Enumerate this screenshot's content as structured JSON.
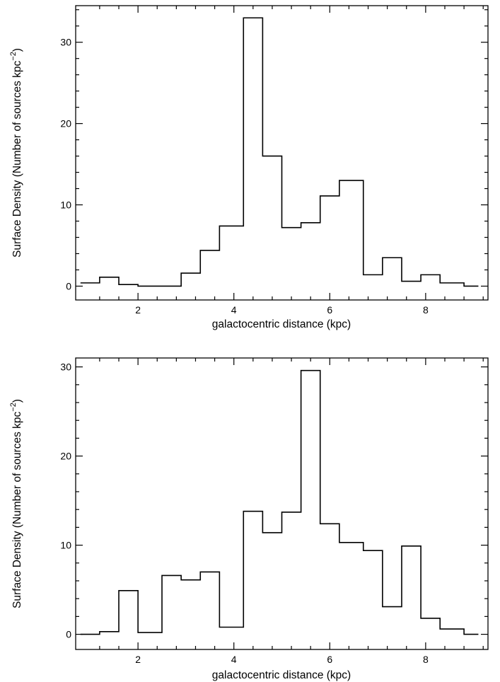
{
  "chart_data": [
    {
      "type": "bar",
      "style": "step-histogram",
      "bin_edges": [
        0.8,
        1.2,
        1.6,
        2.0,
        2.5,
        2.9,
        3.3,
        3.7,
        4.2,
        4.6,
        5.0,
        5.4,
        5.8,
        6.2,
        6.7,
        7.1,
        7.5,
        7.9,
        8.3,
        8.8,
        9.1
      ],
      "values": [
        0.4,
        1.1,
        0.2,
        0.0,
        0.0,
        1.6,
        4.4,
        7.4,
        33.0,
        16.0,
        7.2,
        7.8,
        11.1,
        13.0,
        1.4,
        3.5,
        0.6,
        1.4,
        0.4,
        0.0
      ],
      "xlim": [
        0.7,
        9.3
      ],
      "ylim": [
        -1.7,
        34.5
      ],
      "x_ticks": [
        2,
        4,
        6,
        8
      ],
      "y_ticks": [
        0,
        10,
        20,
        30
      ],
      "xlabel": "galactocentric distance (kpc)",
      "ylabel_prefix": "Surface Density (Number of sources kpc",
      "ylabel_sup": "−2",
      "ylabel_suffix": ")"
    },
    {
      "type": "bar",
      "style": "step-histogram",
      "bin_edges": [
        0.8,
        1.2,
        1.6,
        2.0,
        2.5,
        2.9,
        3.3,
        3.7,
        4.2,
        4.6,
        5.0,
        5.4,
        5.8,
        6.2,
        6.7,
        7.1,
        7.5,
        7.9,
        8.3,
        8.8,
        9.1
      ],
      "values": [
        0.0,
        0.3,
        4.9,
        0.2,
        6.6,
        6.1,
        7.0,
        0.8,
        13.8,
        11.4,
        13.7,
        29.6,
        12.4,
        10.3,
        9.4,
        3.1,
        9.9,
        1.8,
        0.6,
        0.0
      ],
      "xlim": [
        0.7,
        9.3
      ],
      "ylim": [
        -1.7,
        31.0
      ],
      "x_ticks": [
        2,
        4,
        6,
        8
      ],
      "y_ticks": [
        0,
        10,
        20,
        30
      ],
      "xlabel": "galactocentric distance (kpc)",
      "ylabel_prefix": "Surface Density (Number of sources kpc",
      "ylabel_sup": "−2",
      "ylabel_suffix": ")"
    }
  ]
}
